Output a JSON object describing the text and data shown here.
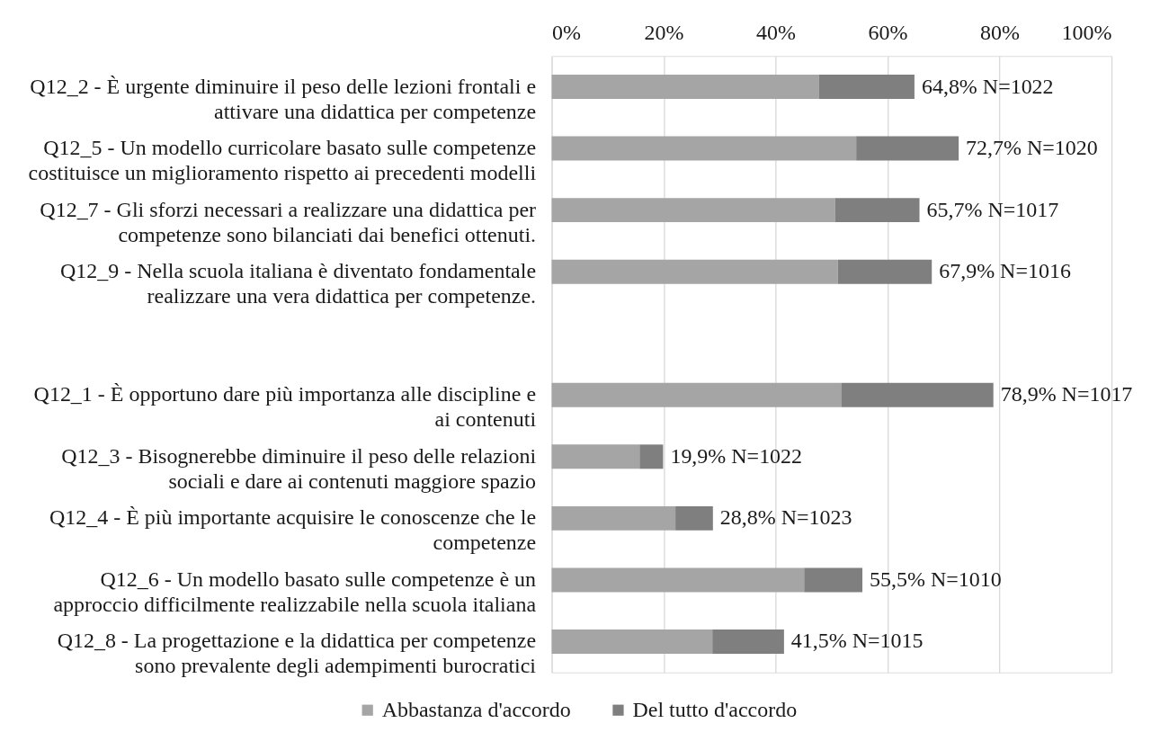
{
  "chart_data": {
    "type": "bar",
    "orientation": "horizontal",
    "stacked": true,
    "categories": [
      "Q12_2 - È urgente diminuire il peso delle lezioni frontali e attivare una didattica per competenze",
      "Q12_5 - Un modello curricolare basato sulle competenze costituisce un miglioramento rispetto ai precedenti modelli",
      "Q12_7 - Gli sforzi necessari a realizzare una didattica per competenze sono bilanciati dai benefici ottenuti.",
      "Q12_9 - Nella scuola italiana è diventato fondamentale realizzare una vera didattica per competenze.",
      null,
      "Q12_1 - È opportuno dare più importanza alle discipline e ai contenuti",
      "Q12_3 - Bisognerebbe diminuire il peso delle relazioni sociali e dare ai contenuti maggiore spazio",
      "Q12_4 - È più importante acquisire le conoscenze che le competenze",
      "Q12_6 - Un modello basato sulle competenze è un approccio difficilmente realizzabile nella scuola italiana",
      "Q12_8 - La progettazione e la didattica per competenze sono prevalente degli adempimenti burocratici"
    ],
    "series": [
      {
        "name": "Abbastanza d'accordo",
        "color": "#a5a5a5",
        "values": [
          47.7,
          54.4,
          50.6,
          51.1,
          null,
          51.8,
          15.7,
          22.1,
          45.1,
          28.7
        ]
      },
      {
        "name": "Del tutto d'accordo",
        "color": "#7f7f7f",
        "values": [
          17.1,
          18.3,
          15.1,
          16.8,
          null,
          27.1,
          4.2,
          6.7,
          10.4,
          12.8
        ]
      }
    ],
    "totals": [
      "64,8% N=1022",
      "72,7% N=1020",
      "65,7% N=1017",
      "67,9% N=1016",
      null,
      "78,9% N=1017",
      "19,9% N=1022",
      "28,8% N=1023",
      "55,5% N=1010",
      "41,5% N=1015"
    ],
    "xlim": [
      0,
      100
    ],
    "xticks": [
      {
        "value": 0,
        "label": "0%"
      },
      {
        "value": 20,
        "label": "20%"
      },
      {
        "value": 40,
        "label": "40%"
      },
      {
        "value": 60,
        "label": "60%"
      },
      {
        "value": 80,
        "label": "80%"
      },
      {
        "value": 100,
        "label": "100%"
      }
    ],
    "grid": "x",
    "legend": "bottom"
  }
}
